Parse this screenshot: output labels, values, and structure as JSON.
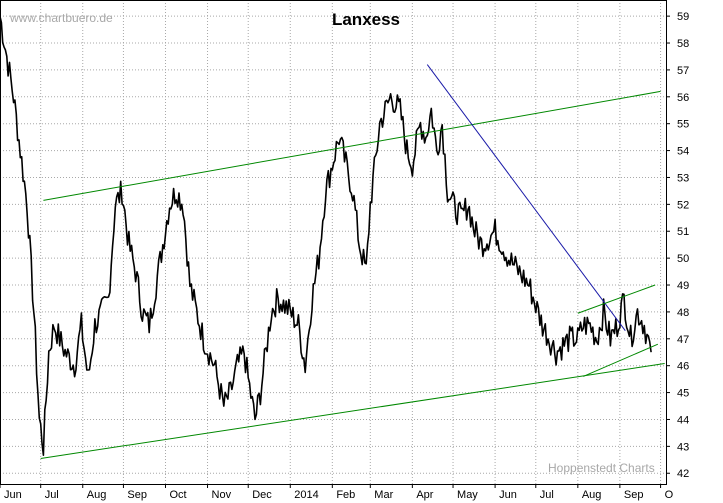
{
  "watermark_top": "www.chartbuero.de",
  "watermark_bottom": "Hoppenstedt Charts",
  "chart_data": {
    "type": "line",
    "title": "Lanxess",
    "y_axis_side": "right",
    "ylim": [
      41.6,
      59.6
    ],
    "y_ticks": [
      42,
      43,
      44,
      45,
      46,
      47,
      48,
      49,
      50,
      51,
      52,
      53,
      54,
      55,
      56,
      57,
      58,
      59
    ],
    "x_ticks": [
      "Jun",
      "Jul",
      "Aug",
      "Sep",
      "Oct",
      "Nov",
      "Dec",
      "2014",
      "Feb",
      "Mar",
      "Apr",
      "May",
      "Jun",
      "Jul",
      "Aug",
      "Sep",
      "O"
    ],
    "grid": true,
    "x_range_days": [
      0,
      491
    ],
    "x_tick_days": [
      0,
      30,
      61,
      91,
      122,
      153,
      183,
      214,
      245,
      273,
      304,
      334,
      365,
      395,
      426,
      457,
      487
    ],
    "series": [
      {
        "style": "price",
        "x": [
          0,
          10,
          20,
          25,
          29,
          32,
          36,
          40,
          48,
          55,
          60,
          65,
          70,
          75,
          80,
          85,
          90,
          95,
          100,
          105,
          110,
          115,
          120,
          125,
          130,
          135,
          140,
          150,
          158,
          165,
          170,
          175,
          180,
          183,
          188,
          192,
          196,
          200,
          205,
          214,
          220,
          225,
          230,
          235,
          240,
          245,
          250,
          260,
          265,
          270,
          273,
          280,
          288,
          295,
          300,
          304,
          310,
          314,
          318,
          322,
          326,
          330,
          334,
          340,
          345,
          350,
          355,
          365,
          375,
          390,
          400,
          410,
          420,
          426,
          430,
          435,
          440,
          445,
          450,
          455,
          460,
          465,
          470,
          475,
          480
        ],
        "y": [
          59.0,
          56.0,
          52.0,
          48.0,
          44.0,
          43.0,
          46.5,
          47.5,
          46.5,
          46.0,
          47.5,
          45.5,
          47.5,
          48.0,
          48.5,
          52.0,
          52.5,
          50.5,
          49.5,
          48.0,
          47.5,
          49.0,
          50.5,
          52.0,
          52.5,
          52.0,
          49.0,
          47.0,
          46.0,
          44.5,
          45.0,
          46.0,
          46.5,
          45.5,
          44.0,
          45.0,
          46.5,
          48.0,
          48.5,
          48.0,
          47.5,
          46.0,
          48.5,
          50.0,
          52.5,
          53.5,
          54.5,
          52.5,
          50.5,
          49.5,
          52.0,
          55.0,
          56.0,
          55.5,
          54.0,
          53.5,
          55.0,
          54.5,
          55.5,
          54.0,
          55.0,
          52.5,
          52.0,
          51.5,
          52.0,
          51.0,
          50.5,
          51.0,
          50.0,
          49.0,
          47.5,
          46.5,
          47.0,
          47.0,
          47.5,
          47.5,
          47.0,
          48.0,
          47.0,
          47.5,
          48.5,
          47.0,
          48.0,
          47.5,
          46.5
        ]
      },
      {
        "style": "trend-green",
        "x": [
          32,
          487
        ],
        "y": [
          52.15,
          56.2
        ]
      },
      {
        "style": "trend-green",
        "x": [
          30,
          490
        ],
        "y": [
          42.55,
          46.08
        ]
      },
      {
        "style": "trend-blue",
        "x": [
          315,
          461
        ],
        "y": [
          57.2,
          47.3
        ]
      },
      {
        "style": "trend-green",
        "x": [
          426,
          483
        ],
        "y": [
          47.95,
          49.0
        ]
      },
      {
        "style": "trend-green",
        "x": [
          430,
          485
        ],
        "y": [
          45.6,
          46.8
        ]
      }
    ],
    "colors": {
      "price": "#000000",
      "trend-green": "#008800",
      "trend-blue": "#1a1aa8",
      "grid": "#a8a8a8"
    }
  }
}
